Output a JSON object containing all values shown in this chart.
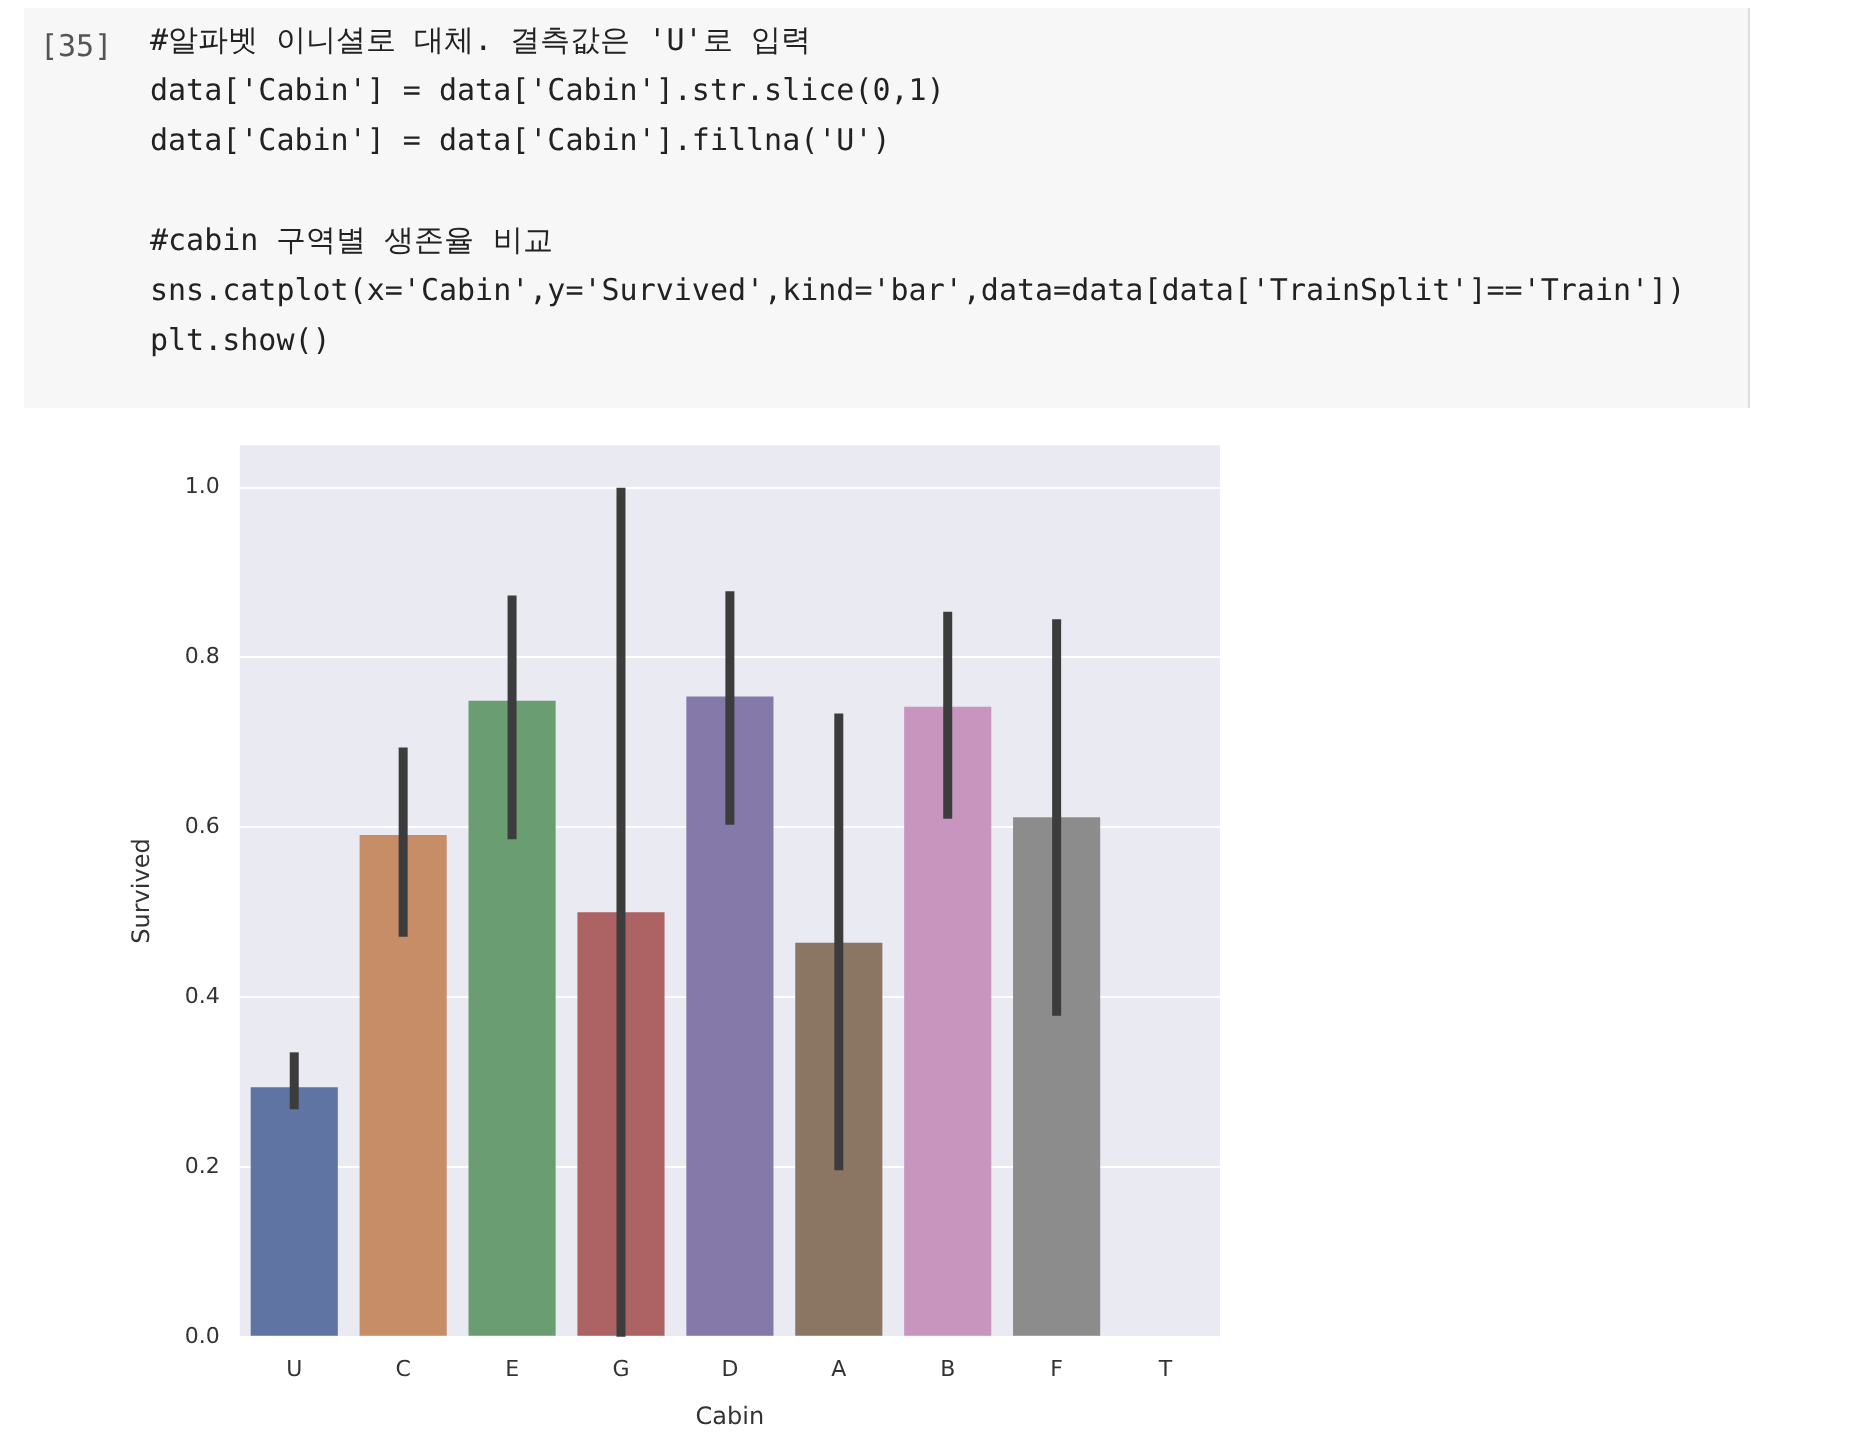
{
  "chart_data": {
    "type": "bar",
    "annotations": [
      "[35]",
      "#알파벳 이니셜로 대체. 결측값은 'U'로 입력",
      "data['Cabin'] = data['Cabin'].str.slice(0,1)",
      "data['Cabin'] = data['Cabin'].fillna('U')",
      "#cabin 구역별 생존율 비교",
      "sns.catplot(x='Cabin',y='Survived',kind='bar',data=data[data['TrainSplit']=='Train'])",
      "plt.show()"
    ],
    "xlabel": "Cabin",
    "ylabel": "Survived",
    "categories": [
      "U",
      "C",
      "E",
      "G",
      "D",
      "A",
      "B",
      "F",
      "T"
    ],
    "values": [
      0.294,
      0.591,
      0.749,
      0.5,
      0.754,
      0.464,
      0.742,
      0.612,
      0
    ],
    "colors": [
      "#5f74a3",
      "#c78d67",
      "#6a9e72",
      "#ad6263",
      "#8479a8",
      "#8b7664",
      "#c795be",
      "#8c8c8c",
      "#8c8c8c"
    ],
    "errors": [
      [
        0.268,
        0.335
      ],
      [
        0.471,
        0.694
      ],
      [
        0.586,
        0.873
      ],
      [
        0,
        1
      ],
      [
        0.603,
        0.878
      ],
      [
        0.196,
        0.734
      ],
      [
        0.61,
        0.854
      ],
      [
        0.378,
        0.845
      ],
      null
    ],
    "ylim": [
      0,
      1.05
    ],
    "yticks": [
      {
        "value": 0,
        "label": "0.0"
      },
      0.2,
      0.4,
      0.6,
      0.8,
      {
        "value": 1,
        "label": "1.0"
      }
    ],
    "grid": "y"
  }
}
